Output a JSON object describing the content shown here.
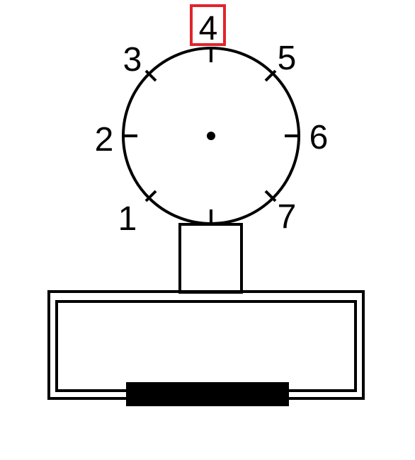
{
  "dial": {
    "labels": [
      "1",
      "2",
      "3",
      "4",
      "5",
      "6",
      "7"
    ],
    "highlighted_label": "4"
  },
  "colors": {
    "line": "#000000",
    "highlight": "#e0242b",
    "background": "#ffffff"
  }
}
